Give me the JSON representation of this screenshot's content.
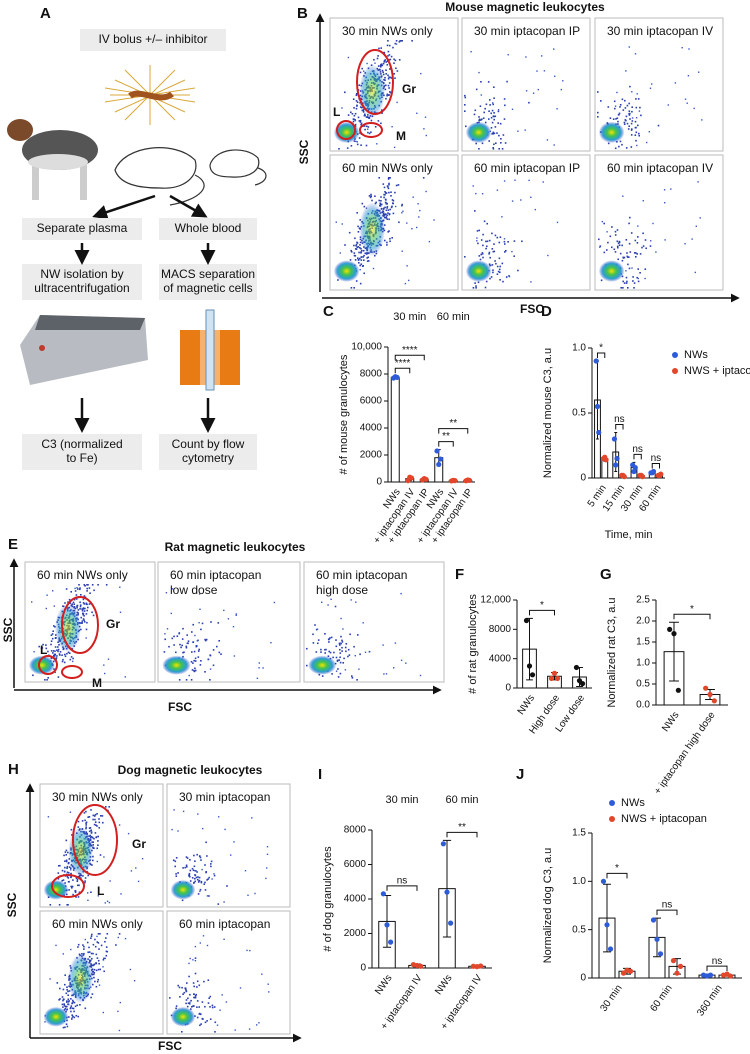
{
  "panel_labels": [
    "A",
    "B",
    "C",
    "D",
    "E",
    "F",
    "G",
    "H",
    "I",
    "J"
  ],
  "schematic": {
    "title": "IV bolus +/– inhibitor",
    "left_steps": [
      [
        "Separate plasma"
      ],
      [
        "NW isolation by",
        "ultracentrifugation"
      ],
      [
        "C3 (normalized",
        "to Fe)"
      ]
    ],
    "right_steps": [
      [
        "Whole blood"
      ],
      [
        "MACS separation",
        "of magnetic cells"
      ],
      [
        "Count by flow",
        "cytometry"
      ]
    ]
  },
  "flow_panels": [
    {
      "title": "Mouse magnetic leukocytes",
      "x_label": "FSC",
      "y_label": "SSC",
      "plots": [
        [
          "30 min NWs only"
        ],
        [
          "30 min iptacopan IP"
        ],
        [
          "30 min iptacopan IV"
        ],
        [
          "60 min NWs only"
        ],
        [
          "60 min iptacopan IP"
        ],
        [
          "60 min iptacopan IV"
        ]
      ],
      "gates": [
        "Gr",
        "L",
        "M"
      ]
    },
    {
      "title": "Rat magnetic leukocytes",
      "x_label": "FSC",
      "y_label": "SSC",
      "plots": [
        [
          "60 min NWs only"
        ],
        [
          "60 min iptacopan",
          "low dose"
        ],
        [
          "60 min iptacopan",
          "high dose"
        ]
      ],
      "gates": [
        "Gr",
        "L",
        "M"
      ]
    },
    {
      "title": "Dog magnetic leukocytes",
      "x_label": "FSC",
      "y_label": "SSC",
      "plots": [
        [
          "30 min NWs only"
        ],
        [
          "30 min iptacopan"
        ],
        [
          "60 min NWs only"
        ],
        [
          "60 min iptacopan"
        ]
      ],
      "gates": [
        "Gr",
        "L"
      ]
    }
  ],
  "chart_data": [
    {
      "type": "bar",
      "y_label": "# of mouse granulocytes",
      "groups": [
        "30 min",
        "60 min"
      ],
      "categories": [
        "NWs",
        "+ iptacopan IV",
        "+ iptacopan IP",
        "NWs",
        "+ iptacopan IV",
        "+ iptacopan IP"
      ],
      "values": [
        7750,
        250,
        200,
        1800,
        100,
        120
      ],
      "errors": [
        80,
        150,
        120,
        600,
        40,
        60
      ],
      "points": [
        [
          7700,
          7800,
          7750
        ],
        [
          100,
          350,
          300
        ],
        [
          150,
          250,
          200
        ],
        [
          2300,
          1300,
          1700
        ],
        [
          80,
          120,
          100
        ],
        [
          90,
          150,
          120
        ]
      ],
      "colors": [
        "#2e5bd8",
        "#e2462b",
        "#e2462b",
        "#2e5bd8",
        "#e2462b",
        "#e2462b"
      ],
      "ylim": [
        0,
        10000
      ],
      "yticks": [
        0,
        2000,
        4000,
        6000,
        8000,
        {
          "value": 10000,
          "label": "10,000"
        }
      ],
      "brackets": [
        {
          "between": [
            0,
            1
          ],
          "label": "****"
        },
        {
          "between": [
            0,
            2
          ],
          "label": "****"
        },
        {
          "between": [
            3,
            4
          ],
          "label": "**"
        },
        {
          "between": [
            3,
            5
          ],
          "label": "**"
        }
      ]
    },
    {
      "type": "bar",
      "y_label": "Normalized mouse C3, a.u",
      "x_label": "Time, min",
      "categories": [
        "5 min",
        "15 min",
        "30 min",
        "60 min"
      ],
      "series": [
        {
          "name": "NWs",
          "color": "#2e5bd8",
          "values": [
            0.6,
            0.2,
            0.08,
            0.04
          ],
          "errors": [
            0.3,
            0.15,
            0.04,
            0.01
          ],
          "points": [
            [
              0.9,
              0.55,
              0.35
            ],
            [
              0.3,
              0.1,
              0.15
            ],
            [
              0.1,
              0.05,
              0.08
            ],
            [
              0.04,
              0.04,
              0.05
            ]
          ]
        },
        {
          "name": "NWS + iptacopan",
          "color": "#e2462b",
          "values": [
            0.15,
            0.02,
            0.02,
            0.02
          ],
          "errors": [
            0.02,
            0.01,
            0.01,
            0.01
          ],
          "points": [
            [
              0.15,
              0.16,
              0.14
            ],
            [
              0.02,
              0.02,
              0.01
            ],
            [
              0.02,
              0.02,
              0.01
            ],
            [
              0.02,
              0.02,
              0.03
            ]
          ]
        }
      ],
      "ylim": [
        0,
        1
      ],
      "yticks": [
        0,
        0.5,
        {
          "value": 1,
          "label": "1.0"
        }
      ],
      "legend": "right",
      "brackets": [
        {
          "category": 0,
          "label": "*"
        },
        {
          "category": 1,
          "label": "ns"
        },
        {
          "category": 2,
          "label": "ns"
        },
        {
          "category": 3,
          "label": "ns"
        }
      ]
    },
    {
      "type": "bar",
      "y_label": "# of rat granulocytes",
      "categories": [
        "NWs",
        "High dose",
        "Low dose"
      ],
      "values": [
        5300,
        1600,
        1500
      ],
      "errors": [
        4200,
        500,
        1300
      ],
      "points": [
        [
          9200,
          3000,
          1800
        ],
        [
          1300,
          2000,
          1300
        ],
        [
          2800,
          1000,
          600
        ]
      ],
      "colors": [
        "#111111",
        "#e2462b",
        "#111111"
      ],
      "ylim": [
        0,
        12000
      ],
      "yticks": [
        0,
        4000,
        8000,
        {
          "value": 12000,
          "label": "12,000"
        }
      ],
      "brackets": [
        {
          "between": [
            0,
            1
          ],
          "label": "*"
        }
      ]
    },
    {
      "type": "bar",
      "y_label": "Normalized rat C3, a.u",
      "categories": [
        "NWs",
        "+ iptacopan high dose"
      ],
      "values": [
        1.27,
        0.25
      ],
      "errors": [
        0.7,
        0.12
      ],
      "points": [
        [
          1.8,
          1.7,
          0.35
        ],
        [
          0.4,
          0.25,
          0.1
        ]
      ],
      "colors": [
        "#111111",
        "#e2462b"
      ],
      "ylim": [
        0,
        2.5
      ],
      "yticks": [
        {
          "value": 0,
          "label": "0.0"
        },
        0.5,
        {
          "value": 1,
          "label": "1.0"
        },
        1.5,
        {
          "value": 2,
          "label": "2.0"
        },
        2.5
      ],
      "brackets": [
        {
          "between": [
            0,
            1
          ],
          "label": "*"
        }
      ]
    },
    {
      "type": "bar",
      "y_label": "# of dog granulocytes",
      "groups": [
        "30 min",
        "60 min"
      ],
      "categories": [
        "NWs",
        "+ iptacopan IV",
        "NWs",
        "+ iptacopan IV"
      ],
      "values": [
        2700,
        150,
        4600,
        100
      ],
      "errors": [
        1500,
        80,
        2800,
        50
      ],
      "points": [
        [
          4300,
          2500,
          1500
        ],
        [
          200,
          150,
          100
        ],
        [
          7200,
          4400,
          2600
        ],
        [
          100,
          80,
          120
        ]
      ],
      "colors": [
        "#2e5bd8",
        "#e2462b",
        "#2e5bd8",
        "#e2462b"
      ],
      "ylim": [
        0,
        8000
      ],
      "yticks": [
        0,
        2000,
        4000,
        6000,
        8000
      ],
      "brackets": [
        {
          "between": [
            0,
            1
          ],
          "label": "ns"
        },
        {
          "between": [
            2,
            3
          ],
          "label": "**"
        }
      ]
    },
    {
      "type": "bar",
      "y_label": "Normalized dog C3, a.u",
      "categories": [
        "30 min",
        "60 min",
        "360 min"
      ],
      "series": [
        {
          "name": "NWs",
          "color": "#2e5bd8",
          "values": [
            0.62,
            0.42,
            0.03
          ],
          "errors": [
            0.35,
            0.2,
            0.01
          ],
          "points": [
            [
              1.0,
              0.55,
              0.3
            ],
            [
              0.6,
              0.4,
              0.25
            ],
            [
              0.03,
              0.02,
              0.03
            ]
          ]
        },
        {
          "name": "NWS + iptacopan",
          "color": "#e2462b",
          "values": [
            0.07,
            0.12,
            0.03
          ],
          "errors": [
            0.03,
            0.08,
            0.01
          ],
          "points": [
            [
              0.05,
              0.08,
              0.07
            ],
            [
              0.18,
              0.05,
              0.12
            ],
            [
              0.03,
              0.04,
              0.02
            ]
          ]
        }
      ],
      "ylim": [
        0,
        1.5
      ],
      "yticks": [
        0,
        0.5,
        {
          "value": 1,
          "label": "1.0"
        },
        1.5
      ],
      "legend": "top",
      "brackets": [
        {
          "category": 0,
          "label": "*"
        },
        {
          "category": 1,
          "label": "ns"
        },
        {
          "category": 2,
          "label": "ns"
        }
      ]
    }
  ]
}
